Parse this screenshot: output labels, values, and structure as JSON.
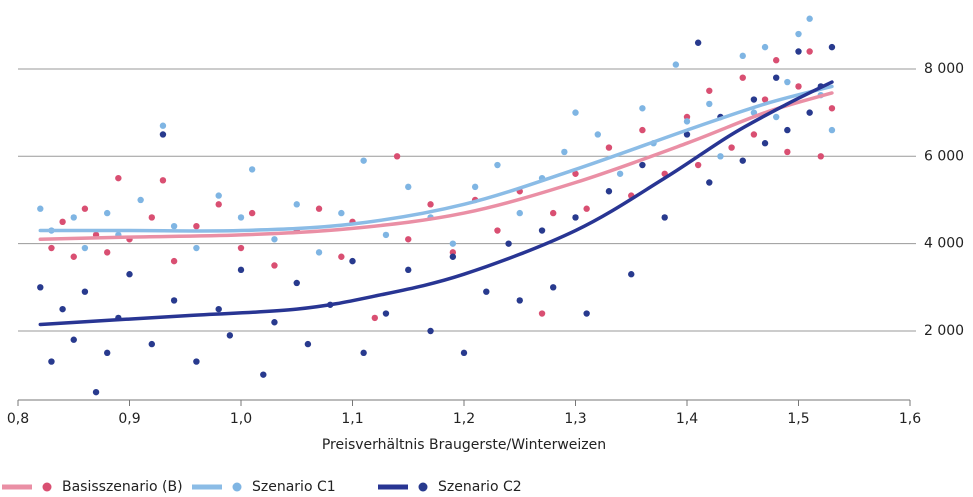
{
  "chart_data": {
    "type": "scatter",
    "x_label": "Preisverhältnis Braugerste/Winterweizen",
    "xlim": [
      0.8,
      1.6
    ],
    "xticks": [
      {
        "value": 0.8,
        "label": "0,8"
      },
      {
        "value": 0.9,
        "label": "0,9"
      },
      {
        "value": 1.0,
        "label": "1,0"
      },
      {
        "value": 1.1,
        "label": "1,1"
      },
      {
        "value": 1.2,
        "label": "1,2"
      },
      {
        "value": 1.3,
        "label": "1,3"
      },
      {
        "value": 1.4,
        "label": "1,4"
      },
      {
        "value": 1.5,
        "label": "1,5"
      },
      {
        "value": 1.6,
        "label": "1,6"
      }
    ],
    "ylim": [
      420,
      9350
    ],
    "yticks": [
      {
        "value": 2000,
        "label": "2 000"
      },
      {
        "value": 4000,
        "label": "4 000"
      },
      {
        "value": 6000,
        "label": "6 000"
      },
      {
        "value": 8000,
        "label": "8 000"
      }
    ],
    "grid": true,
    "legend": "bottom-left",
    "series": [
      {
        "name": "Basisszenario (B)",
        "color": "#d94f72",
        "line_color": "#ea8fa5",
        "x": [
          0.83,
          0.84,
          0.85,
          0.86,
          0.87,
          0.88,
          0.89,
          0.9,
          0.92,
          0.93,
          0.94,
          0.96,
          0.98,
          1.0,
          1.01,
          1.03,
          1.05,
          1.07,
          1.09,
          1.1,
          1.12,
          1.14,
          1.15,
          1.17,
          1.19,
          1.21,
          1.23,
          1.25,
          1.27,
          1.28,
          1.3,
          1.31,
          1.33,
          1.35,
          1.36,
          1.38,
          1.4,
          1.41,
          1.42,
          1.44,
          1.45,
          1.46,
          1.47,
          1.48,
          1.49,
          1.5,
          1.51,
          1.52,
          1.53
        ],
        "values": [
          3900,
          4500,
          3700,
          4800,
          4200,
          3800,
          5500,
          4100,
          4600,
          5450,
          3600,
          4400,
          4900,
          3900,
          4700,
          3500,
          4300,
          4800,
          3700,
          4500,
          2300,
          6000,
          4100,
          4900,
          3800,
          5000,
          4300,
          5200,
          2400,
          4700,
          5600,
          4800,
          6200,
          5100,
          6600,
          5600,
          6900,
          5800,
          7500,
          6200,
          7800,
          6500,
          7300,
          8200,
          6100,
          7600,
          8400,
          6000,
          7100
        ],
        "trend": {
          "x": [
            0.82,
            0.9,
            1.0,
            1.1,
            1.2,
            1.3,
            1.4,
            1.47,
            1.53
          ],
          "values": [
            4100,
            4150,
            4200,
            4350,
            4700,
            5400,
            6300,
            7000,
            7450
          ]
        }
      },
      {
        "name": "Szenario C1",
        "color": "#7fb5e3",
        "line_color": "#8bbce6",
        "x": [
          0.82,
          0.83,
          0.85,
          0.86,
          0.88,
          0.89,
          0.91,
          0.93,
          0.94,
          0.96,
          0.98,
          1.0,
          1.01,
          1.03,
          1.05,
          1.07,
          1.09,
          1.11,
          1.13,
          1.15,
          1.17,
          1.19,
          1.21,
          1.23,
          1.25,
          1.27,
          1.29,
          1.3,
          1.32,
          1.34,
          1.36,
          1.37,
          1.39,
          1.4,
          1.42,
          1.43,
          1.45,
          1.46,
          1.47,
          1.48,
          1.49,
          1.5,
          1.51,
          1.52,
          1.53
        ],
        "values": [
          4800,
          4300,
          4600,
          3900,
          4700,
          4200,
          5000,
          6700,
          4400,
          3900,
          5100,
          4600,
          5700,
          4100,
          4900,
          3800,
          4700,
          5900,
          4200,
          5300,
          4600,
          4000,
          5300,
          5800,
          4700,
          5500,
          6100,
          7000,
          6500,
          5600,
          7100,
          6300,
          8100,
          6800,
          7200,
          6000,
          8300,
          7000,
          8500,
          6900,
          7700,
          8800,
          9150,
          7400,
          6600
        ],
        "trend": {
          "x": [
            0.82,
            0.9,
            1.0,
            1.1,
            1.2,
            1.3,
            1.4,
            1.47,
            1.53
          ],
          "values": [
            4300,
            4300,
            4300,
            4450,
            4900,
            5700,
            6600,
            7200,
            7600
          ]
        }
      },
      {
        "name": "Szenario C2",
        "color": "#283a8e",
        "line_color": "#283593",
        "x": [
          0.82,
          0.83,
          0.84,
          0.85,
          0.86,
          0.87,
          0.88,
          0.89,
          0.9,
          0.92,
          0.93,
          0.94,
          0.96,
          0.98,
          0.99,
          1.0,
          1.02,
          1.03,
          1.05,
          1.06,
          1.08,
          1.1,
          1.11,
          1.13,
          1.15,
          1.17,
          1.19,
          1.2,
          1.22,
          1.24,
          1.25,
          1.27,
          1.28,
          1.3,
          1.31,
          1.33,
          1.35,
          1.36,
          1.38,
          1.4,
          1.41,
          1.42,
          1.43,
          1.45,
          1.46,
          1.47,
          1.48,
          1.49,
          1.5,
          1.51,
          1.52,
          1.53
        ],
        "values": [
          3000,
          1300,
          2500,
          1800,
          2900,
          600,
          1500,
          2300,
          3300,
          1700,
          6500,
          2700,
          1300,
          2500,
          1900,
          3400,
          1000,
          2200,
          3100,
          1700,
          2600,
          3600,
          1500,
          2400,
          3400,
          2000,
          3700,
          1500,
          2900,
          4000,
          2700,
          4300,
          3000,
          4600,
          2400,
          5200,
          3300,
          5800,
          4600,
          6500,
          8600,
          5400,
          6900,
          5900,
          7300,
          6300,
          7800,
          6600,
          8400,
          7000,
          7600,
          8500
        ],
        "trend": {
          "x": [
            0.82,
            0.95,
            1.05,
            1.12,
            1.2,
            1.3,
            1.38,
            1.44,
            1.49,
            1.53
          ],
          "values": [
            2150,
            2350,
            2500,
            2800,
            3300,
            4300,
            5500,
            6500,
            7200,
            7700
          ]
        }
      }
    ]
  }
}
